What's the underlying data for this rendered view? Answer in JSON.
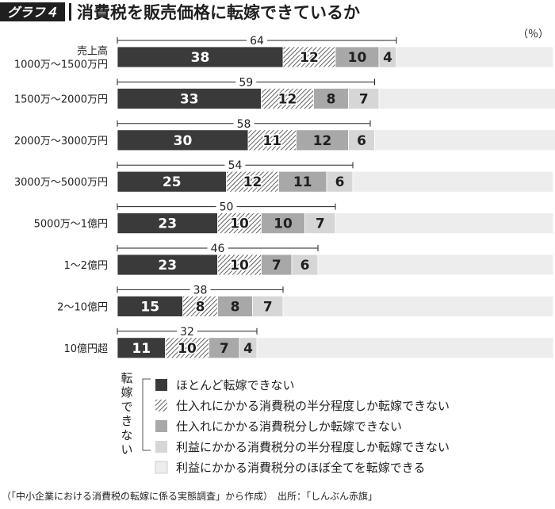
{
  "header": {
    "badge": "グラフ４",
    "title": "消費税を販売価格に転嫁できているか"
  },
  "unit_label": "（％）",
  "legend_group_label": "転嫁できない",
  "source": "（「中小企業における消費税の転嫁に係る実態調査」から作成）　出所：「しんぶん赤旗」",
  "colors": {
    "dark": "#3a3a3a",
    "hatch": "#505050",
    "mid": "#a8a8a8",
    "light": "#d6d6d6",
    "lightest": "#ededed"
  },
  "chart_data": {
    "type": "bar",
    "orientation": "horizontal",
    "stacked": true,
    "xlim": [
      0,
      100
    ],
    "categories": [
      [
        "売上高",
        "1000万～1500万円"
      ],
      [
        "1500万～2000万円"
      ],
      [
        "2000万～3000万円"
      ],
      [
        "3000万～5000万円"
      ],
      [
        "5000万～1億円"
      ],
      [
        "1～2億円"
      ],
      [
        "2～10億円"
      ],
      [
        "10億円超"
      ]
    ],
    "series": [
      {
        "name": "ほとんど転嫁できない",
        "fill": "dark",
        "values": [
          38,
          33,
          30,
          25,
          23,
          23,
          15,
          11
        ]
      },
      {
        "name": "仕入れにかかる消費税の半分程度しか転嫁できない",
        "fill": "hatch",
        "values": [
          12,
          12,
          11,
          12,
          10,
          10,
          8,
          10
        ]
      },
      {
        "name": "仕入れにかかる消費税分しか転嫁できない",
        "fill": "mid",
        "values": [
          10,
          8,
          12,
          11,
          10,
          7,
          8,
          7
        ]
      },
      {
        "name": "利益にかかる消費税分の半分程度しか転嫁できない",
        "fill": "light",
        "values": [
          4,
          7,
          6,
          6,
          7,
          6,
          7,
          4
        ]
      },
      {
        "name": "利益にかかる消費税分のほぼ全てを転嫁できる",
        "fill": "lightest",
        "values": [
          36,
          41,
          42,
          46,
          50,
          54,
          62,
          68
        ]
      }
    ],
    "totals_cannot_pass": [
      64,
      59,
      58,
      54,
      50,
      46,
      38,
      32
    ]
  }
}
